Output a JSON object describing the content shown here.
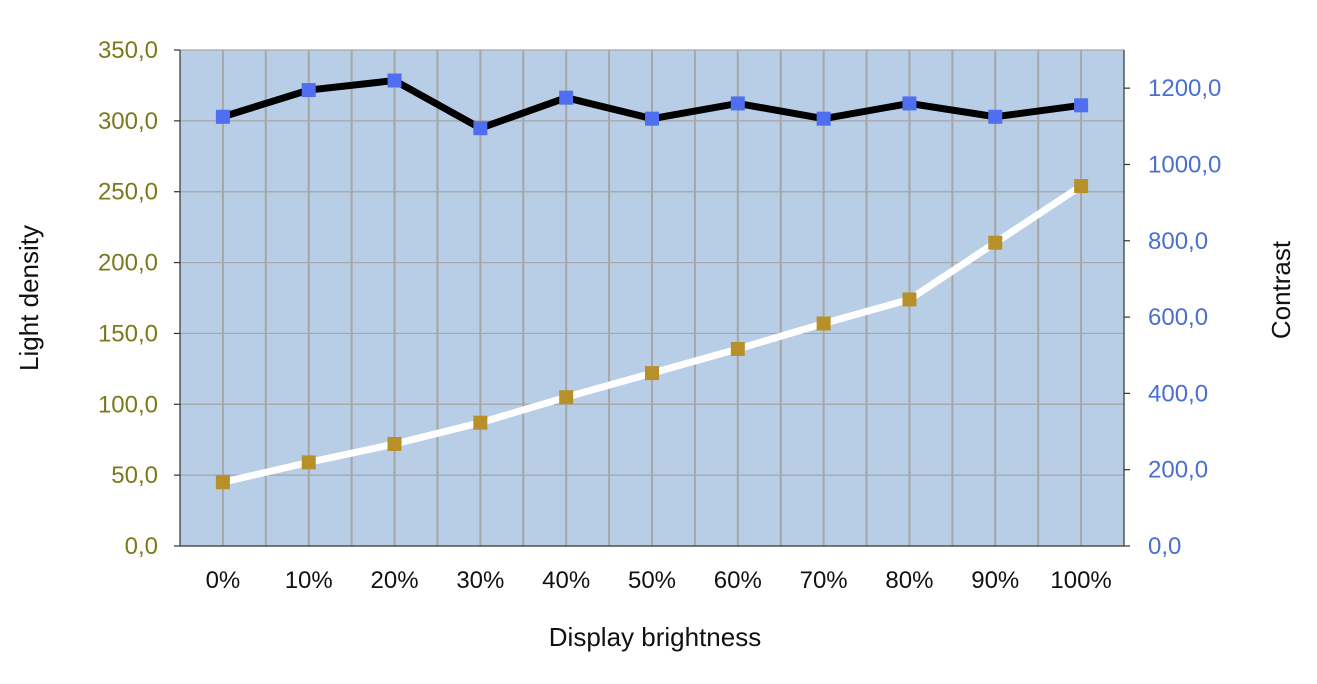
{
  "chart_data": {
    "type": "line",
    "title": "",
    "categories": [
      "0%",
      "10%",
      "20%",
      "30%",
      "40%",
      "50%",
      "60%",
      "70%",
      "80%",
      "90%",
      "100%"
    ],
    "xlabel": "Display brightness",
    "ylabel_left": "Light density",
    "ylabel_right": "Contrast",
    "ylim_left": [
      0,
      350
    ],
    "ylim_right": [
      0,
      1300
    ],
    "yticks_left": [
      "0,0",
      "50,0",
      "100,0",
      "150,0",
      "200,0",
      "250,0",
      "300,0",
      "350,0"
    ],
    "yticks_right": [
      "0,0",
      "200,0",
      "400,0",
      "600,0",
      "800,0",
      "1000,0",
      "1200,0"
    ],
    "yticks_left_values": [
      0,
      50,
      100,
      150,
      200,
      250,
      300,
      350
    ],
    "yticks_right_values": [
      0,
      200,
      400,
      600,
      800,
      1000,
      1200
    ],
    "grid": true,
    "series": [
      {
        "axis": "left",
        "line_color": "#ffffff",
        "marker_color": "#b8902a",
        "values": [
          45,
          59,
          72,
          87,
          105,
          122,
          139,
          157,
          174,
          214,
          254
        ]
      },
      {
        "axis": "right",
        "line_color": "#000000",
        "marker_color": "#4f6ef0",
        "values": [
          1125,
          1195,
          1220,
          1095,
          1175,
          1120,
          1160,
          1120,
          1160,
          1125,
          1155
        ]
      }
    ],
    "colors": {
      "plot_background": "#b8cde6",
      "gridline": "#a6a6a6",
      "left_tick_text": "#7a7a1c",
      "right_tick_text": "#4a6fd0"
    }
  }
}
